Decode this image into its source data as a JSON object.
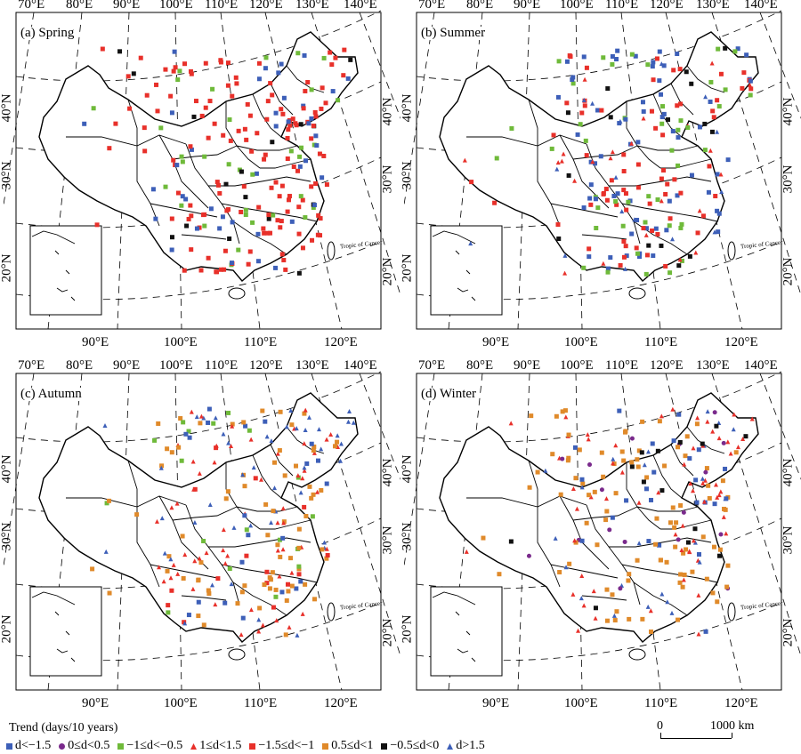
{
  "panels": [
    {
      "title": "(a) Spring"
    },
    {
      "title": "(b) Summer"
    },
    {
      "title": "(c) Autumn"
    },
    {
      "title": "(d) Winter"
    }
  ],
  "top_lon_labels": [
    "70°E",
    "80°E",
    "90°E",
    "100°E",
    "110°E",
    "120°E",
    "130°E",
    "140°E"
  ],
  "bottom_lon_labels": [
    "90°E",
    "100°E",
    "110°E",
    "120°E"
  ],
  "lat_labels": [
    "40°N",
    "30°N",
    "20°N"
  ],
  "tropic_label": "Tropic of Cancer",
  "legend": {
    "title": "Trend (days/10 years)",
    "items": [
      {
        "label": "d<−1.5",
        "color": "#3d5fb8",
        "shape": "square"
      },
      {
        "label": "0≤d<0.5",
        "color": "#7a2a8c",
        "shape": "circle"
      },
      {
        "label": "−1≤d<−0.5",
        "color": "#6fba3a",
        "shape": "square"
      },
      {
        "label": "1≤d<1.5",
        "color": "#e8302a",
        "shape": "triangle"
      },
      {
        "label": "−1.5≤d<−1",
        "color": "#e8302a",
        "shape": "square"
      },
      {
        "label": "0.5≤d<1",
        "color": "#e08a2a",
        "shape": "square"
      },
      {
        "label": "−0.5≤d<0",
        "color": "#111111",
        "shape": "square"
      },
      {
        "label": "d>1.5",
        "color": "#3d5fb8",
        "shape": "triangle"
      }
    ]
  },
  "scale_bar": {
    "start": "0",
    "end": "1000 km"
  }
}
